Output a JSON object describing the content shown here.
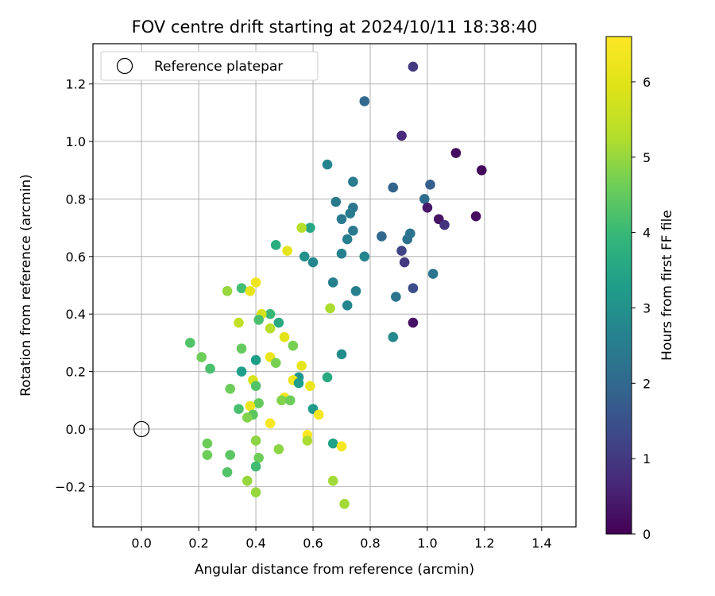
{
  "chart_data": {
    "type": "scatter",
    "title": "FOV centre drift starting at 2024/10/11 18:38:40",
    "xlabel": "Angular distance from reference (arcmin)",
    "ylabel": "Rotation from reference (arcmin)",
    "xlim": [
      -0.17,
      1.52
    ],
    "ylim": [
      -0.34,
      1.34
    ],
    "xticks": [
      0.0,
      0.2,
      0.4,
      0.6,
      0.8,
      1.0,
      1.2,
      1.4
    ],
    "xtick_labels": [
      "0.0",
      "0.2",
      "0.4",
      "0.6",
      "0.8",
      "1.0",
      "1.2",
      "1.4"
    ],
    "yticks": [
      -0.2,
      0.0,
      0.2,
      0.4,
      0.6,
      0.8,
      1.0,
      1.2
    ],
    "ytick_labels": [
      "−0.2",
      "0.0",
      "0.2",
      "0.4",
      "0.6",
      "0.8",
      "1.0",
      "1.2"
    ],
    "grid": true,
    "legend": {
      "placement": "upper-left",
      "entries": [
        {
          "label": "Reference platepar",
          "marker": "open-circle"
        }
      ]
    },
    "reference_point": {
      "x": 0.0,
      "y": 0.0
    },
    "colorbar": {
      "label": "Hours from first FF file",
      "colormap": "viridis",
      "range": [
        0,
        6.6
      ],
      "ticks": [
        0,
        1,
        2,
        3,
        4,
        5,
        6
      ],
      "tick_labels": [
        "0",
        "1",
        "2",
        "3",
        "4",
        "5",
        "6"
      ]
    },
    "points": [
      [
        0.95,
        1.26,
        1.0
      ],
      [
        0.78,
        1.14,
        2.0
      ],
      [
        0.91,
        1.02,
        0.7
      ],
      [
        1.1,
        0.96,
        0.2
      ],
      [
        1.19,
        0.9,
        0.1
      ],
      [
        0.65,
        0.92,
        2.7
      ],
      [
        0.74,
        0.86,
        2.5
      ],
      [
        1.01,
        0.85,
        1.8
      ],
      [
        0.88,
        0.84,
        1.9
      ],
      [
        0.99,
        0.8,
        2.1
      ],
      [
        0.68,
        0.79,
        2.4
      ],
      [
        0.74,
        0.77,
        2.3
      ],
      [
        1.0,
        0.77,
        0.4
      ],
      [
        0.73,
        0.75,
        2.5
      ],
      [
        1.17,
        0.74,
        0.2
      ],
      [
        0.7,
        0.73,
        2.4
      ],
      [
        1.04,
        0.73,
        0.3
      ],
      [
        1.06,
        0.71,
        0.9
      ],
      [
        0.59,
        0.7,
        3.5
      ],
      [
        0.56,
        0.7,
        5.3
      ],
      [
        0.74,
        0.69,
        2.4
      ],
      [
        0.94,
        0.68,
        2.3
      ],
      [
        0.84,
        0.67,
        2.0
      ],
      [
        0.93,
        0.66,
        2.2
      ],
      [
        0.72,
        0.66,
        2.6
      ],
      [
        0.47,
        0.64,
        3.7
      ],
      [
        0.91,
        0.62,
        1.2
      ],
      [
        0.51,
        0.62,
        6.1
      ],
      [
        0.57,
        0.6,
        3.0
      ],
      [
        0.7,
        0.61,
        2.6
      ],
      [
        0.78,
        0.6,
        2.7
      ],
      [
        0.6,
        0.58,
        2.7
      ],
      [
        0.92,
        0.58,
        1.0
      ],
      [
        1.02,
        0.54,
        2.3
      ],
      [
        0.67,
        0.51,
        2.6
      ],
      [
        0.4,
        0.51,
        6.3
      ],
      [
        0.35,
        0.49,
        4.1
      ],
      [
        0.38,
        0.48,
        6.1
      ],
      [
        0.3,
        0.48,
        5.0
      ],
      [
        0.95,
        0.49,
        1.4
      ],
      [
        0.75,
        0.48,
        2.6
      ],
      [
        0.89,
        0.46,
        2.3
      ],
      [
        0.72,
        0.43,
        2.7
      ],
      [
        0.66,
        0.42,
        5.2
      ],
      [
        0.45,
        0.4,
        4.0
      ],
      [
        0.42,
        0.4,
        5.8
      ],
      [
        0.41,
        0.38,
        4.2
      ],
      [
        0.34,
        0.37,
        5.5
      ],
      [
        0.48,
        0.37,
        3.6
      ],
      [
        0.45,
        0.35,
        5.3
      ],
      [
        0.95,
        0.37,
        0.3
      ],
      [
        0.88,
        0.32,
        2.8
      ],
      [
        0.5,
        0.32,
        6.0
      ],
      [
        0.17,
        0.3,
        4.3
      ],
      [
        0.53,
        0.29,
        4.7
      ],
      [
        0.35,
        0.28,
        4.5
      ],
      [
        0.7,
        0.26,
        2.9
      ],
      [
        0.21,
        0.25,
        4.6
      ],
      [
        0.45,
        0.25,
        6.2
      ],
      [
        0.4,
        0.24,
        3.3
      ],
      [
        0.47,
        0.23,
        4.7
      ],
      [
        0.56,
        0.22,
        6.1
      ],
      [
        0.24,
        0.21,
        4.2
      ],
      [
        0.35,
        0.2,
        3.3
      ],
      [
        0.55,
        0.18,
        3.1
      ],
      [
        0.65,
        0.18,
        3.6
      ],
      [
        0.39,
        0.17,
        5.8
      ],
      [
        0.53,
        0.17,
        6.4
      ],
      [
        0.55,
        0.16,
        3.3
      ],
      [
        0.4,
        0.15,
        4.3
      ],
      [
        0.59,
        0.15,
        6.2
      ],
      [
        0.31,
        0.14,
        4.6
      ],
      [
        0.5,
        0.11,
        6.4
      ],
      [
        0.49,
        0.1,
        4.8
      ],
      [
        0.52,
        0.1,
        4.6
      ],
      [
        0.41,
        0.09,
        4.5
      ],
      [
        0.38,
        0.08,
        6.3
      ],
      [
        0.34,
        0.07,
        4.2
      ],
      [
        0.6,
        0.07,
        3.2
      ],
      [
        0.62,
        0.05,
        6.4
      ],
      [
        0.39,
        0.05,
        4.4
      ],
      [
        0.37,
        0.04,
        4.8
      ],
      [
        0.45,
        0.02,
        6.5
      ],
      [
        0.58,
        -0.02,
        6.6
      ],
      [
        0.58,
        -0.04,
        5.2
      ],
      [
        0.4,
        -0.04,
        4.9
      ],
      [
        0.23,
        -0.05,
        4.6
      ],
      [
        0.67,
        -0.05,
        3.4
      ],
      [
        0.7,
        -0.06,
        6.4
      ],
      [
        0.48,
        -0.07,
        4.9
      ],
      [
        0.23,
        -0.09,
        4.6
      ],
      [
        0.31,
        -0.09,
        4.4
      ],
      [
        0.41,
        -0.1,
        4.6
      ],
      [
        0.4,
        -0.13,
        4.1
      ],
      [
        0.3,
        -0.15,
        4.3
      ],
      [
        0.37,
        -0.18,
        5.0
      ],
      [
        0.67,
        -0.18,
        5.1
      ],
      [
        0.4,
        -0.22,
        5.0
      ],
      [
        0.71,
        -0.26,
        5.1
      ]
    ]
  }
}
